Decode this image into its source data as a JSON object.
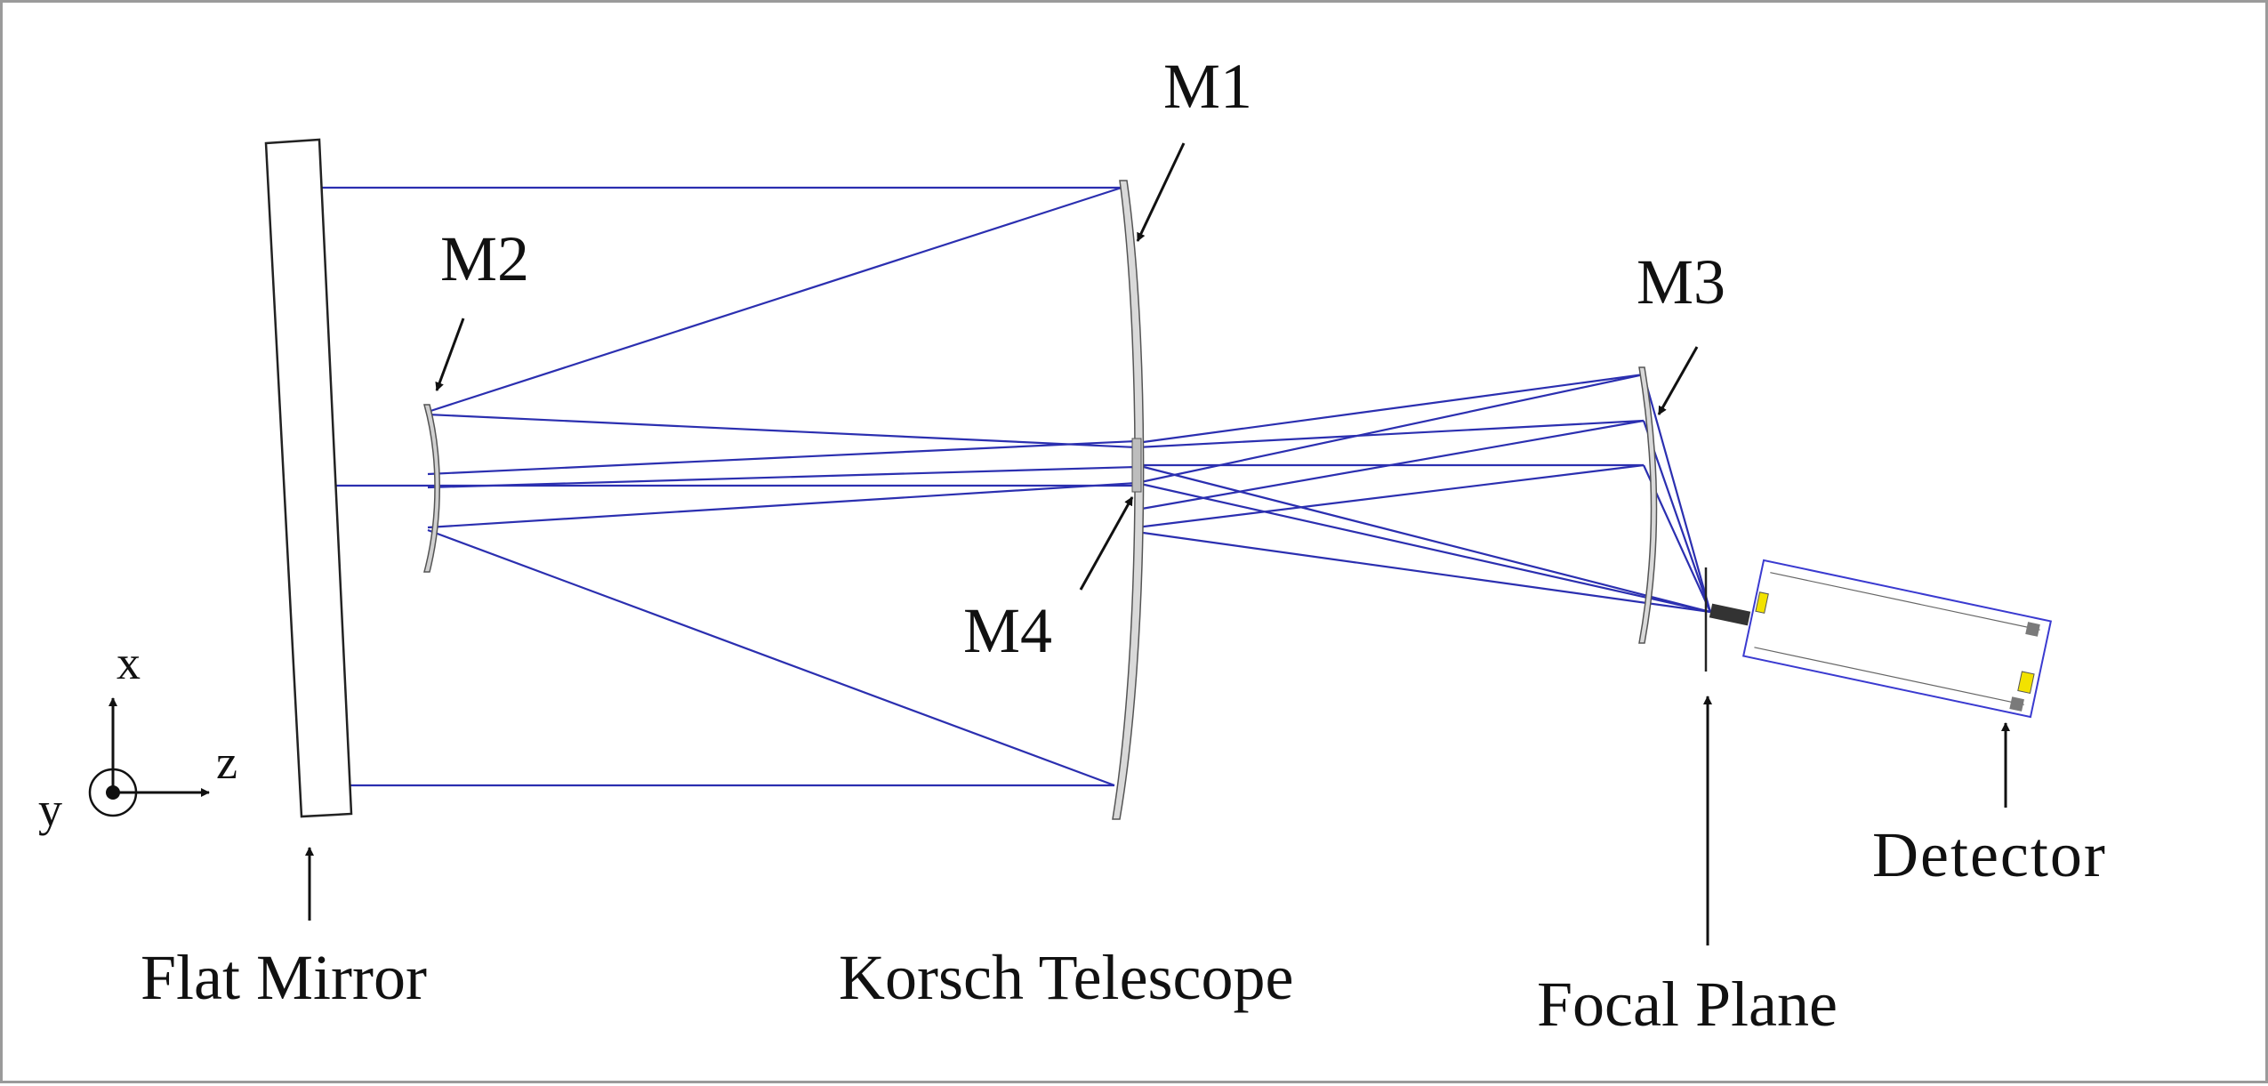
{
  "colors": {
    "ray": "#2b2fb0",
    "outline": "#222222",
    "mirror_fill": "#ffffff",
    "lens_fill": "#d9d9d9",
    "detector_outline": "#3a3ad0",
    "detector_accent": "#f2e200",
    "text": "#111111"
  },
  "labels": {
    "m1": "M1",
    "m2": "M2",
    "m3": "M3",
    "m4": "M4",
    "flat_mirror": "Flat Mirror",
    "korsch_telescope": "Korsch Telescope",
    "focal_plane": "Focal Plane",
    "detector": "Detector"
  },
  "axes": {
    "x": "x",
    "y": "y",
    "z": "z"
  },
  "icons": [
    "arrow-icon",
    "coordinate-axes-icon"
  ]
}
